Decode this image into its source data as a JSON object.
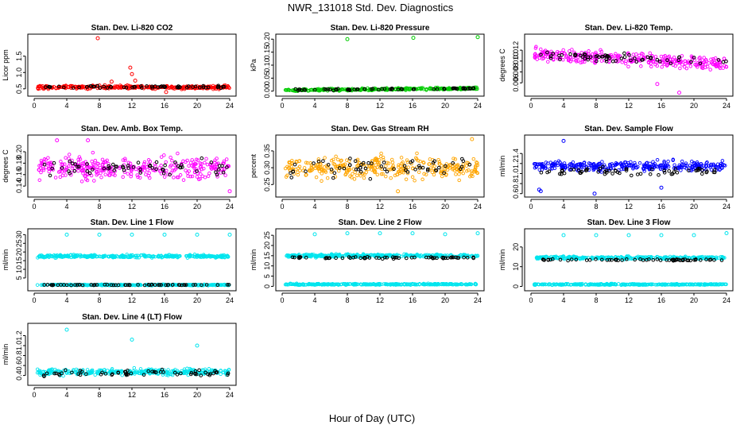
{
  "figure": {
    "title": "NWR_131018  Std. Dev. Diagnostics",
    "xlabel": "Hour of Day (UTC)"
  },
  "colors": {
    "red": "#ff0000",
    "green": "#00cc00",
    "magenta": "#ff00ff",
    "orange": "#ffa500",
    "blue": "#0000ff",
    "cyan": "#00e5ee",
    "black": "#000000"
  },
  "chart_data": [
    {
      "type": "scatter",
      "title": "Stan. Dev. Li-820 CO2",
      "ylabel": "Licor ppm",
      "color": "red",
      "xlim": [
        0,
        24
      ],
      "xticks": [
        "0",
        "4",
        "8",
        "12",
        "16",
        "20",
        "24"
      ],
      "ylim": [
        0.35,
        2.1
      ],
      "yticks": [
        0.5,
        1.0,
        1.5
      ],
      "ytick_labels": [
        "0.5",
        "1.0",
        "1.5"
      ],
      "bands": [
        {
          "center": 0.55,
          "spread": 0.05
        }
      ],
      "black_band": {
        "center": 0.56,
        "spread": 0.04
      },
      "outliers": [
        [
          7.8,
          2.05
        ],
        [
          11.8,
          1.15
        ],
        [
          12.0,
          0.95
        ],
        [
          12.4,
          0.75
        ],
        [
          16.2,
          0.4
        ],
        [
          9.5,
          0.72
        ]
      ]
    },
    {
      "type": "scatter",
      "title": "Stan. Dev. Li-820 Pressure",
      "ylabel": "kPa",
      "color": "green",
      "xlim": [
        0,
        24
      ],
      "xticks": [
        "0",
        "4",
        "8",
        "12",
        "16",
        "20",
        "24"
      ],
      "ylim": [
        -0.01,
        0.21
      ],
      "yticks": [
        0.0,
        0.05,
        0.1,
        0.15,
        0.2
      ],
      "ytick_labels": [
        "0.00",
        "0.05",
        "0.10",
        "0.15",
        "0.20"
      ],
      "bands": [
        {
          "center": 0.003,
          "spread": 0.004,
          "trend": 0.008
        }
      ],
      "black_band": {
        "center": 0.004,
        "spread": 0.003,
        "trend": 0.007
      },
      "outliers": [
        [
          8.0,
          0.2
        ],
        [
          16.1,
          0.205
        ],
        [
          24.0,
          0.208
        ]
      ]
    },
    {
      "type": "scatter",
      "title": "Stan. Dev. Li-820 Temp.",
      "ylabel": "degrees C",
      "color": "magenta",
      "xlim": [
        0,
        24
      ],
      "xticks": [
        "0",
        "4",
        "8",
        "12",
        "16",
        "20",
        "24"
      ],
      "ylim": [
        0.004,
        0.0145
      ],
      "yticks": [
        0.006,
        0.008,
        0.01,
        0.012
      ],
      "ytick_labels": [
        "0.006",
        "0.008",
        "0.010",
        "0.012"
      ],
      "bands": [
        {
          "center": 0.0113,
          "spread": 0.0012,
          "trend": -0.0018
        }
      ],
      "black_band": {
        "center": 0.0113,
        "spread": 0.0008,
        "trend": -0.0015
      },
      "outliers": [
        [
          18.2,
          0.0042
        ],
        [
          15.5,
          0.0058
        ]
      ]
    },
    {
      "type": "scatter",
      "title": "Stan. Dev. Amb. Box Temp.",
      "ylabel": "degrees C",
      "color": "magenta",
      "xlim": [
        0,
        24
      ],
      "xticks": [
        "0",
        "4",
        "8",
        "12",
        "16",
        "20",
        "24"
      ],
      "ylim": [
        0.125,
        0.225
      ],
      "yticks": [
        0.14,
        0.16,
        0.18,
        0.2
      ],
      "ytick_labels": [
        "0.14",
        "0.16",
        "0.18",
        "0.20"
      ],
      "bands": [
        {
          "center": 0.172,
          "spread": 0.018
        }
      ],
      "black_band": {
        "center": 0.17,
        "spread": 0.015
      },
      "outliers": [
        [
          24.0,
          0.131
        ],
        [
          2.8,
          0.22
        ],
        [
          6.6,
          0.22
        ]
      ]
    },
    {
      "type": "scatter",
      "title": "Stan. Dev. Gas Stream RH",
      "ylabel": "percent",
      "color": "orange",
      "xlim": [
        0,
        24
      ],
      "xticks": [
        "0",
        "4",
        "8",
        "12",
        "16",
        "20",
        "24"
      ],
      "ylim": [
        0.22,
        0.39
      ],
      "yticks": [
        0.25,
        0.3,
        0.35
      ],
      "ytick_labels": [
        "0.25",
        "0.30",
        "0.35"
      ],
      "bands": [
        {
          "center": 0.3,
          "spread": 0.03
        }
      ],
      "black_band": {
        "center": 0.3,
        "spread": 0.03
      },
      "outliers": [
        [
          23.3,
          0.385
        ],
        [
          14.2,
          0.23
        ]
      ]
    },
    {
      "type": "scatter",
      "title": "Stan. Dev. Sample Flow",
      "ylabel": "ml/min",
      "color": "blue",
      "xlim": [
        0,
        24
      ],
      "xticks": [
        "0",
        "4",
        "8",
        "12",
        "16",
        "20",
        "24"
      ],
      "ylim": [
        0.58,
        1.72
      ],
      "yticks": [
        0.6,
        0.8,
        1.0,
        1.2,
        1.4
      ],
      "ytick_labels": [
        "0.6",
        "0.8",
        "1.0",
        "1.2",
        "1.4"
      ],
      "bands": [
        {
          "center": 1.15,
          "spread": 0.09
        }
      ],
      "black_band": {
        "center": 1.05,
        "spread": 0.08
      },
      "outliers": [
        [
          4.0,
          1.65
        ],
        [
          1.0,
          0.68
        ],
        [
          1.2,
          0.65
        ],
        [
          7.8,
          0.6
        ],
        [
          16.0,
          0.72
        ]
      ]
    },
    {
      "type": "scatter",
      "title": "Stan. Dev. Line 1 Flow",
      "ylabel": "ml/min",
      "color": "cyan",
      "xlim": [
        0,
        24
      ],
      "xticks": [
        "0",
        "4",
        "8",
        "12",
        "16",
        "20",
        "24"
      ],
      "ylim": [
        -1,
        32
      ],
      "yticks": [
        5,
        10,
        15,
        20,
        25,
        30
      ],
      "ytick_labels": [
        "5",
        "10",
        "15",
        "20",
        "25",
        "30"
      ],
      "bands": [
        {
          "center": 17.5,
          "spread": 0.8
        },
        {
          "center": 1.0,
          "spread": 0.3
        }
      ],
      "black_band": {
        "center": 1.0,
        "spread": 0.2
      },
      "outliers": [
        [
          4.0,
          30.0
        ],
        [
          8.0,
          30.0
        ],
        [
          12.0,
          30.0
        ],
        [
          16.0,
          30.0
        ],
        [
          20.0,
          30.0
        ],
        [
          24.0,
          30.0
        ]
      ]
    },
    {
      "type": "scatter",
      "title": "Stan. Dev. Line 2 Flow",
      "ylabel": "ml/min",
      "color": "cyan",
      "xlim": [
        0,
        24
      ],
      "xticks": [
        "0",
        "4",
        "8",
        "12",
        "16",
        "20",
        "24"
      ],
      "ylim": [
        -1,
        27
      ],
      "yticks": [
        0,
        5,
        10,
        15,
        20,
        25
      ],
      "ytick_labels": [
        "0",
        "5",
        "10",
        "15",
        "20",
        "25"
      ],
      "bands": [
        {
          "center": 15.0,
          "spread": 0.7
        },
        {
          "center": 1.0,
          "spread": 0.3
        }
      ],
      "black_band": {
        "center": 14.0,
        "spread": 0.4
      },
      "outliers": [
        [
          4.0,
          25.5
        ],
        [
          8.0,
          26.0
        ],
        [
          12.0,
          26.0
        ],
        [
          16.0,
          26.0
        ],
        [
          20.0,
          25.5
        ],
        [
          24.0,
          26.0
        ]
      ]
    },
    {
      "type": "scatter",
      "title": "Stan. Dev. Line 3 Flow",
      "ylabel": "ml/min",
      "color": "cyan",
      "xlim": [
        0,
        24
      ],
      "xticks": [
        "0",
        "4",
        "8",
        "12",
        "16",
        "20",
        "24"
      ],
      "ylim": [
        -1,
        28
      ],
      "yticks": [
        0,
        10,
        20
      ],
      "ytick_labels": [
        "0",
        "10",
        "20"
      ],
      "bands": [
        {
          "center": 14.5,
          "spread": 0.7
        },
        {
          "center": 1.0,
          "spread": 0.3
        }
      ],
      "black_band": {
        "center": 13.5,
        "spread": 0.4
      },
      "outliers": [
        [
          4.0,
          26.0
        ],
        [
          8.0,
          26.0
        ],
        [
          12.0,
          26.0
        ],
        [
          16.0,
          26.0
        ],
        [
          20.0,
          26.0
        ],
        [
          24.0,
          27.0
        ]
      ]
    },
    {
      "type": "scatter",
      "title": "Stan. Dev. Line 4 (LT) Flow",
      "ylabel": "ml/min",
      "color": "cyan",
      "xlim": [
        0,
        24
      ],
      "xticks": [
        "0",
        "4",
        "8",
        "12",
        "16",
        "20",
        "24"
      ],
      "ylim": [
        0.25,
        1.4
      ],
      "yticks": [
        0.4,
        0.6,
        0.8,
        1.0,
        1.2
      ],
      "ytick_labels": [
        "0.4",
        "0.6",
        "0.8",
        "1.0",
        "1.2"
      ],
      "bands": [
        {
          "center": 0.47,
          "spread": 0.06
        }
      ],
      "black_band": {
        "center": 0.45,
        "spread": 0.06
      },
      "outliers": [
        [
          4.0,
          1.32
        ],
        [
          12.0,
          1.12
        ],
        [
          20.0,
          1.0
        ]
      ]
    }
  ]
}
